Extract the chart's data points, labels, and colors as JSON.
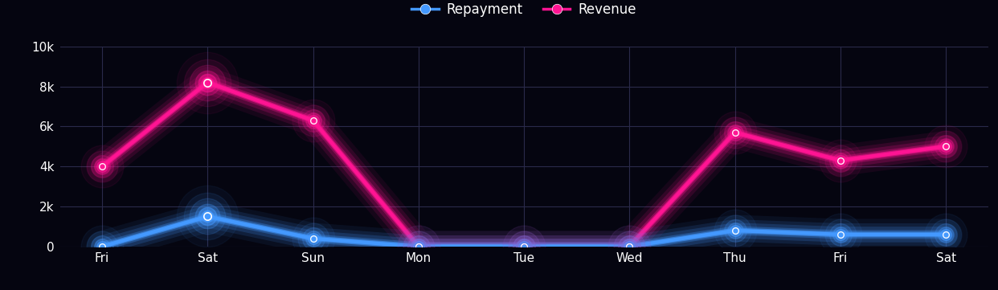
{
  "categories": [
    "Fri",
    "Sat",
    "Sun",
    "Mon",
    "Tue",
    "Wed",
    "Thu",
    "Fri",
    "Sat"
  ],
  "revenue": [
    4000,
    8200,
    6300,
    0,
    0,
    0,
    5700,
    4300,
    5000
  ],
  "repayment": [
    0,
    1500,
    400,
    0,
    0,
    0,
    800,
    600,
    600
  ],
  "revenue_color": "#FF1493",
  "repayment_color": "#4499FF",
  "bg_color": "#050510",
  "grid_color": "#2a2a4a",
  "ylim": [
    0,
    10000
  ],
  "yticks": [
    0,
    2000,
    4000,
    6000,
    8000,
    10000
  ],
  "ytick_labels": [
    "0",
    "2k",
    "4k",
    "6k",
    "8k",
    "10k"
  ],
  "legend_labels": [
    "Repayment",
    "Revenue"
  ],
  "tick_fontsize": 11,
  "legend_fontsize": 12
}
